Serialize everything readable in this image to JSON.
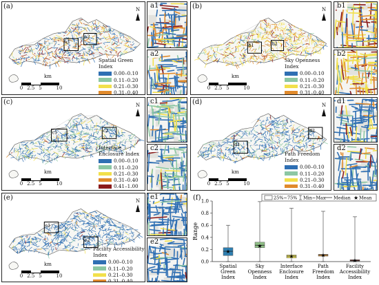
{
  "panels": {
    "a": {
      "label": "(a)",
      "legend_title": "Spatial Green Index",
      "box_labels": [
        "a1",
        "a2"
      ],
      "insets": [
        "a1",
        "a2"
      ]
    },
    "b": {
      "label": "(b)",
      "legend_title": "Sky Openness Index",
      "box_labels": [
        "b1",
        "b2"
      ],
      "insets": [
        "b1",
        "b2"
      ]
    },
    "c": {
      "label": "(c)",
      "legend_title": "Interface Enclosure Index",
      "box_labels": [
        "c1",
        "c2"
      ],
      "insets": [
        "c1",
        "c2"
      ]
    },
    "d": {
      "label": "(d)",
      "legend_title": "Path Freedom Index",
      "box_labels": [
        "d1",
        "d2"
      ],
      "insets": [
        "d1",
        "d2"
      ]
    },
    "e": {
      "label": "(e)",
      "legend_title": "Facility Accessibility Index",
      "box_labels": [
        "e1",
        "e2"
      ],
      "insets": [
        "e1",
        "e2"
      ]
    }
  },
  "legend_classes": [
    "0.00–0.10",
    "0.11–0.20",
    "0.21–0.30",
    "0.31–0.40",
    "0.41–1.00"
  ],
  "legend_colors": [
    "#2f6fb3",
    "#8cc7a3",
    "#f2e04b",
    "#e08a2c",
    "#8b1a1a"
  ],
  "scalebar": {
    "ticks": [
      "0",
      "2.5",
      "5",
      "10"
    ],
    "unit": "km"
  },
  "north": "N",
  "chart_label": "(f)",
  "chart_data": {
    "type": "box",
    "ylabel": "Range",
    "ylim": [
      0,
      1.0
    ],
    "yticks": [
      "0.0",
      "0.2",
      "0.4",
      "0.6",
      "0.8",
      "1.0"
    ],
    "legend": {
      "iqr": "25%~75%",
      "range": "Min~Max",
      "median": "Median",
      "mean": "Mean"
    },
    "categories": [
      {
        "name": "Spatial Green Index",
        "color": "#2f7fb0",
        "min": 0.0,
        "q1": 0.1,
        "median": 0.17,
        "q3": 0.23,
        "max": 0.6,
        "mean": 0.17
      },
      {
        "name": "Sky Openness Index",
        "color": "#8fbf86",
        "min": 0.0,
        "q1": 0.23,
        "median": 0.27,
        "q3": 0.32,
        "max": 0.99,
        "mean": 0.26
      },
      {
        "name": "Interface Enclosure Index",
        "color": "#e9e060",
        "min": 0.0,
        "q1": 0.06,
        "median": 0.09,
        "q3": 0.11,
        "max": 0.88,
        "mean": 0.09
      },
      {
        "name": "Path Freedom Index",
        "color": "#e2a04a",
        "min": 0.0,
        "q1": 0.09,
        "median": 0.11,
        "q3": 0.12,
        "max": 0.83,
        "mean": 0.11
      },
      {
        "name": "Facility Accessibility Index",
        "color": "#8b2a24",
        "min": 0.0,
        "q1": 0.01,
        "median": 0.02,
        "q3": 0.03,
        "max": 0.74,
        "mean": 0.02
      }
    ]
  }
}
